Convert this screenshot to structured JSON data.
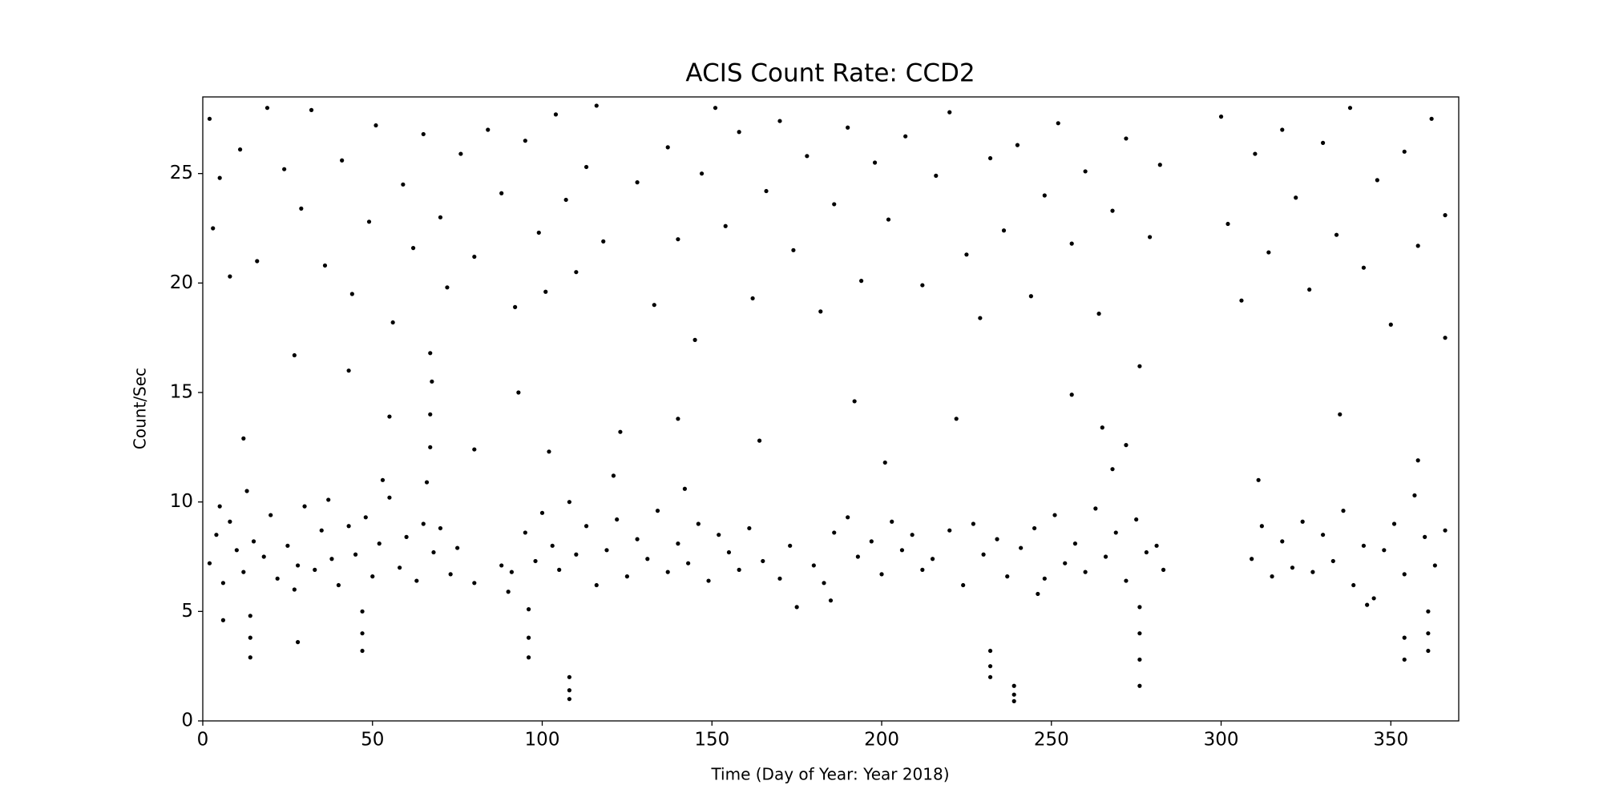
{
  "chart_data": {
    "type": "scatter",
    "title": "ACIS Count Rate: CCD2",
    "x_label": "Time (Day of Year: Year 2018)",
    "y_label": "Count/Sec",
    "color": "#000000",
    "xlim": [
      0,
      370
    ],
    "ylim": [
      0,
      28.5
    ],
    "xticks": [
      0,
      50,
      100,
      150,
      200,
      250,
      300,
      350
    ],
    "yticks": [
      0,
      5,
      10,
      15,
      20,
      25
    ],
    "x": [
      2,
      4,
      6,
      8,
      10,
      12,
      15,
      18,
      20,
      22,
      25,
      28,
      30,
      33,
      35,
      38,
      40,
      43,
      45,
      48,
      50,
      52,
      55,
      58,
      60,
      63,
      65,
      68,
      70,
      73,
      75,
      80,
      88,
      91,
      95,
      98,
      100,
      103,
      105,
      110,
      113,
      116,
      119,
      122,
      125,
      128,
      131,
      134,
      137,
      140,
      143,
      146,
      149,
      152,
      155,
      158,
      161,
      165,
      170,
      173,
      180,
      183,
      186,
      190,
      193,
      197,
      200,
      203,
      206,
      209,
      212,
      215,
      220,
      224,
      227,
      230,
      234,
      237,
      241,
      245,
      248,
      251,
      254,
      257,
      260,
      263,
      266,
      269,
      272,
      275,
      278,
      281,
      283,
      309,
      312,
      315,
      318,
      321,
      324,
      327,
      330,
      333,
      336,
      339,
      342,
      345,
      348,
      351,
      354,
      357,
      360,
      363,
      366,
      5,
      13,
      27,
      37,
      53,
      66,
      102,
      108,
      121,
      142,
      201,
      268,
      272,
      311,
      358,
      90,
      175,
      185,
      246,
      343,
      67,
      67,
      67.5,
      67,
      14,
      14,
      14,
      47,
      47,
      47,
      96,
      96,
      96,
      108,
      108,
      108,
      232,
      232,
      232,
      239,
      239,
      239,
      276,
      276,
      276,
      276,
      354,
      354,
      361,
      361,
      361,
      6,
      28,
      2,
      3,
      5,
      8,
      11,
      16,
      19,
      24,
      27,
      29,
      32,
      36,
      41,
      44,
      49,
      51,
      56,
      59,
      62,
      65,
      70,
      72,
      76,
      80,
      84,
      88,
      92,
      95,
      99,
      101,
      104,
      107,
      110,
      113,
      116,
      118,
      128,
      133,
      137,
      140,
      145,
      147,
      151,
      154,
      158,
      162,
      166,
      170,
      174,
      178,
      182,
      186,
      190,
      194,
      198,
      202,
      207,
      212,
      216,
      220,
      225,
      229,
      232,
      236,
      240,
      244,
      248,
      252,
      256,
      260,
      264,
      268,
      272,
      276,
      279,
      282,
      300,
      302,
      306,
      310,
      314,
      318,
      322,
      326,
      330,
      334,
      338,
      342,
      346,
      350,
      354,
      358,
      362,
      366,
      366,
      12,
      43,
      55,
      80,
      93,
      123,
      140,
      164,
      192,
      222,
      256,
      265,
      335
    ],
    "values": [
      7.2,
      8.5,
      6.3,
      9.1,
      7.8,
      6.8,
      8.2,
      7.5,
      9.4,
      6.5,
      8.0,
      7.1,
      9.8,
      6.9,
      8.7,
      7.4,
      6.2,
      8.9,
      7.6,
      9.3,
      6.6,
      8.1,
      10.2,
      7.0,
      8.4,
      6.4,
      9.0,
      7.7,
      8.8,
      6.7,
      7.9,
      6.3,
      7.1,
      6.8,
      8.6,
      7.3,
      9.5,
      8.0,
      6.9,
      7.6,
      8.9,
      6.2,
      7.8,
      9.2,
      6.6,
      8.3,
      7.4,
      9.6,
      6.8,
      8.1,
      7.2,
      9.0,
      6.4,
      8.5,
      7.7,
      6.9,
      8.8,
      7.3,
      6.5,
      8.0,
      7.1,
      6.3,
      8.6,
      9.3,
      7.5,
      8.2,
      6.7,
      9.1,
      7.8,
      8.5,
      6.9,
      7.4,
      8.7,
      6.2,
      9.0,
      7.6,
      8.3,
      6.6,
      7.9,
      8.8,
      6.5,
      9.4,
      7.2,
      8.1,
      6.8,
      9.7,
      7.5,
      8.6,
      6.4,
      9.2,
      7.7,
      8.0,
      6.9,
      7.4,
      8.9,
      6.6,
      8.2,
      7.0,
      9.1,
      6.8,
      8.5,
      7.3,
      9.6,
      6.2,
      8.0,
      5.6,
      7.8,
      9.0,
      6.7,
      10.3,
      8.4,
      7.1,
      8.7,
      9.8,
      10.5,
      6.0,
      10.1,
      11.0,
      10.9,
      12.3,
      10.0,
      11.2,
      10.6,
      11.8,
      11.5,
      12.6,
      11.0,
      11.9,
      5.9,
      5.2,
      5.5,
      5.8,
      5.3,
      12.5,
      14.0,
      15.5,
      16.8,
      4.8,
      3.8,
      2.9,
      5.0,
      4.0,
      3.2,
      5.1,
      3.8,
      2.9,
      2.0,
      1.4,
      1.0,
      3.2,
      2.5,
      2.0,
      1.6,
      1.2,
      0.9,
      5.2,
      4.0,
      2.8,
      1.6,
      3.8,
      2.8,
      5.0,
      4.0,
      3.2,
      4.6,
      3.6,
      27.5,
      22.5,
      24.8,
      20.3,
      26.1,
      21.0,
      28.0,
      25.2,
      16.7,
      23.4,
      27.9,
      20.8,
      25.6,
      19.5,
      22.8,
      27.2,
      18.2,
      24.5,
      21.6,
      26.8,
      23.0,
      19.8,
      25.9,
      21.2,
      27.0,
      24.1,
      18.9,
      26.5,
      22.3,
      19.6,
      27.7,
      23.8,
      20.5,
      25.3,
      28.1,
      21.9,
      24.6,
      19.0,
      26.2,
      22.0,
      17.4,
      25.0,
      28.0,
      22.6,
      26.9,
      19.3,
      24.2,
      27.4,
      21.5,
      25.8,
      18.7,
      23.6,
      27.1,
      20.1,
      25.5,
      22.9,
      26.7,
      19.9,
      24.9,
      27.8,
      21.3,
      18.4,
      25.7,
      22.4,
      26.3,
      19.4,
      24.0,
      27.3,
      21.8,
      25.1,
      18.6,
      23.3,
      26.6,
      16.2,
      22.1,
      25.4,
      27.6,
      22.7,
      19.2,
      25.9,
      21.4,
      27.0,
      23.9,
      19.7,
      26.4,
      22.2,
      28.0,
      20.7,
      24.7,
      18.1,
      26.0,
      21.7,
      27.5,
      23.1,
      17.5,
      12.9,
      16.0,
      13.9,
      12.4,
      15.0,
      13.2,
      13.8,
      12.8,
      14.6,
      13.8,
      14.9,
      13.4,
      14.0
    ]
  }
}
